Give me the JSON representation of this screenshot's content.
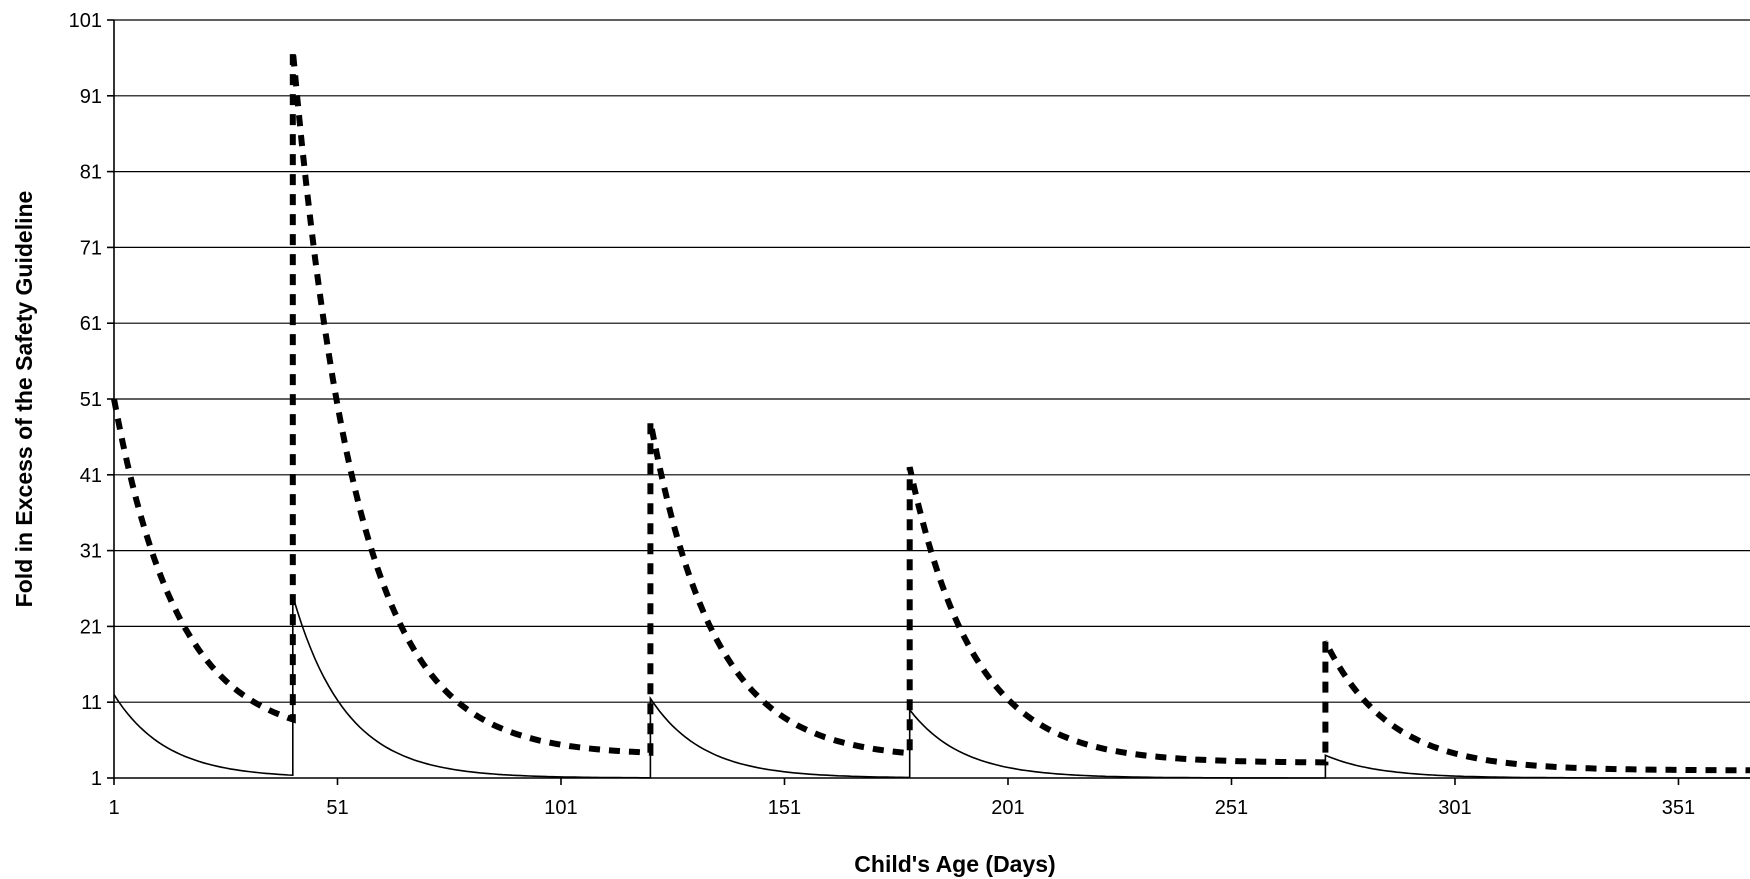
{
  "chart_data": {
    "type": "line",
    "title": "",
    "xlabel": "Child's Age (Days)",
    "ylabel": "Fold in Excess of the Safety Guideline",
    "xlim": [
      1,
      367
    ],
    "ylim": [
      1,
      101
    ],
    "x_ticks": [
      1,
      51,
      101,
      151,
      201,
      251,
      301,
      351
    ],
    "y_ticks": [
      1,
      11,
      21,
      31,
      41,
      51,
      61,
      71,
      81,
      91,
      101
    ],
    "grid": "horizontal",
    "legend": "none",
    "series": [
      {
        "style": "dashed-thick",
        "color": "#000000",
        "doses": [
          {
            "day": 1,
            "peak": 51,
            "baseline": 6
          },
          {
            "day": 41,
            "peak": 97,
            "baseline": 4
          },
          {
            "day": 121,
            "peak": 48,
            "baseline": 3.5
          },
          {
            "day": 179,
            "peak": 42,
            "baseline": 3
          },
          {
            "day": 272,
            "peak": 19,
            "baseline": 2
          }
        ],
        "decay_rate": 0.07
      },
      {
        "style": "solid-thin",
        "color": "#000000",
        "doses": [
          {
            "day": 1,
            "peak": 12,
            "baseline": 1
          },
          {
            "day": 41,
            "peak": 25,
            "baseline": 1
          },
          {
            "day": 121,
            "peak": 11.5,
            "baseline": 1
          },
          {
            "day": 179,
            "peak": 10,
            "baseline": 1
          },
          {
            "day": 272,
            "peak": 4,
            "baseline": 1
          }
        ],
        "decay_rate": 0.085
      }
    ]
  }
}
